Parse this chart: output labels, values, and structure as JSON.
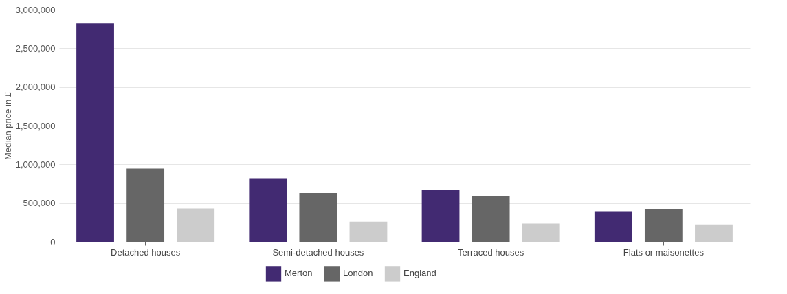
{
  "chart_data": {
    "type": "bar",
    "ylabel": "Median price in £",
    "categories": [
      "Detached houses",
      "Semi-detached houses",
      "Terraced houses",
      "Flats or maisonettes"
    ],
    "series": [
      {
        "name": "Merton",
        "color": "#422a72",
        "values": [
          2820000,
          820000,
          665000,
          395000
        ]
      },
      {
        "name": "London",
        "color": "#666666",
        "values": [
          945000,
          630000,
          595000,
          425000
        ]
      },
      {
        "name": "England",
        "color": "#cccccc",
        "values": [
          430000,
          260000,
          235000,
          225000
        ]
      }
    ],
    "ylim": [
      0,
      3000000
    ],
    "yticks": [
      0,
      {
        "value": 500000,
        "label": "500,000"
      },
      {
        "value": 1000000,
        "label": "1,000,000"
      },
      {
        "value": 1500000,
        "label": "1,500,000"
      },
      {
        "value": 2000000,
        "label": "2,000,000"
      },
      {
        "value": 2500000,
        "label": "2,500,000"
      },
      {
        "value": 3000000,
        "label": "3,000,000"
      }
    ],
    "grid": "y",
    "legend": "bottom"
  }
}
